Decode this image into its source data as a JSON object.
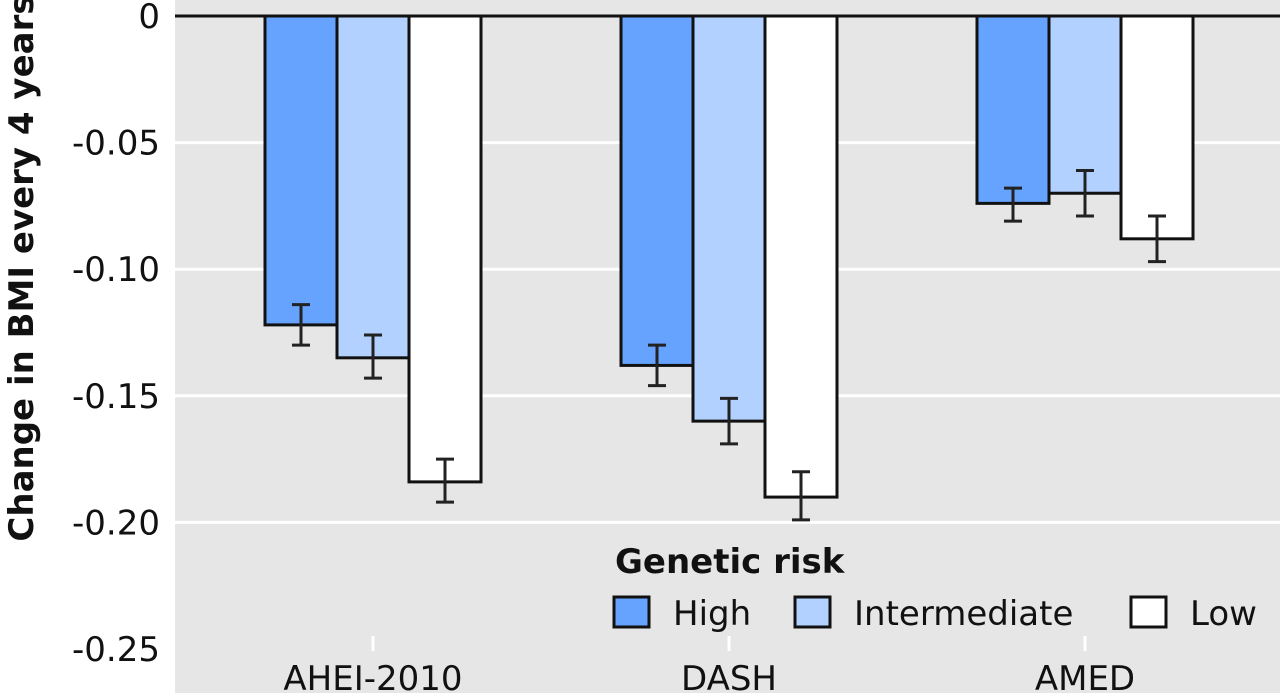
{
  "chart_data": {
    "type": "bar",
    "ylabel": "Change in BMI every 4 years",
    "xlabel": "",
    "ylim": [
      -0.25,
      0
    ],
    "yticks": [
      0,
      -0.05,
      -0.1,
      -0.15,
      -0.2,
      -0.25
    ],
    "ytick_labels": [
      "0",
      "-0.05",
      "-0.10",
      "-0.15",
      "-0.20",
      "-0.25"
    ],
    "categories": [
      "AHEI-2010",
      "DASH",
      "AMED"
    ],
    "legend_title": "Genetic risk",
    "legend_position": "bottom-right",
    "grid": true,
    "series": [
      {
        "name": "High",
        "color": "#66a3ff",
        "values": [
          -0.122,
          -0.138,
          -0.074
        ],
        "error_low": [
          -0.13,
          -0.146,
          -0.081
        ],
        "error_high": [
          -0.114,
          -0.13,
          -0.068
        ]
      },
      {
        "name": "Intermediate",
        "color": "#b3d1ff",
        "values": [
          -0.135,
          -0.16,
          -0.07
        ],
        "error_low": [
          -0.143,
          -0.169,
          -0.079
        ],
        "error_high": [
          -0.126,
          -0.151,
          -0.061
        ]
      },
      {
        "name": "Low",
        "color": "#ffffff",
        "values": [
          -0.184,
          -0.19,
          -0.088
        ],
        "error_low": [
          -0.192,
          -0.199,
          -0.097
        ],
        "error_high": [
          -0.175,
          -0.18,
          -0.079
        ]
      }
    ]
  }
}
